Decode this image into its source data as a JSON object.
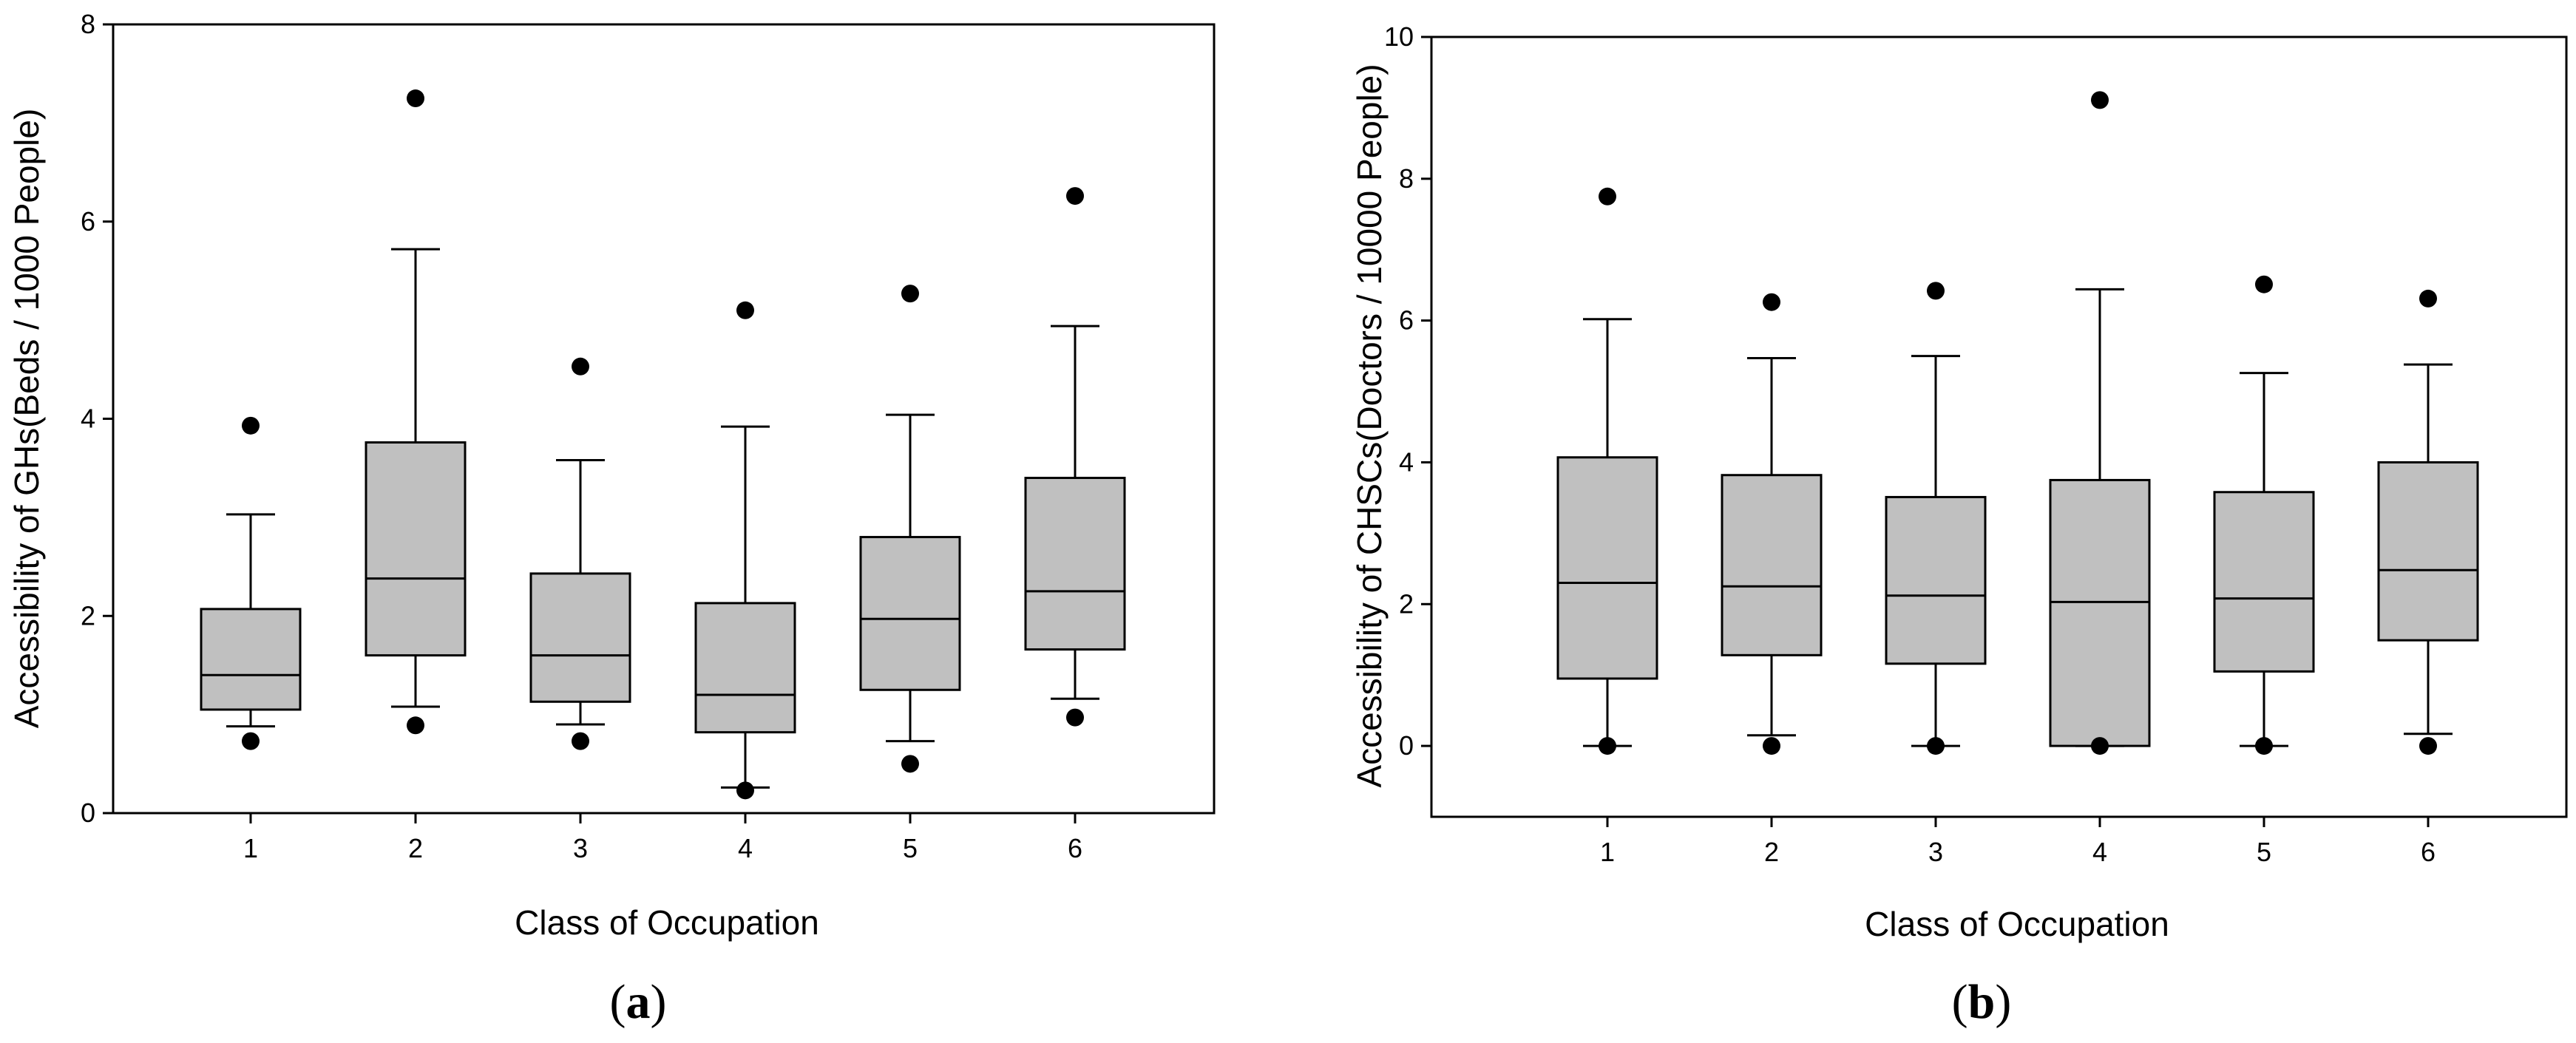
{
  "chart_data": [
    {
      "type": "boxplot",
      "panel_label": "a",
      "xlabel": "Class of Occupation",
      "ylabel": "Accessibility of GHs(Beds / 1000 People)",
      "ylim": [
        0,
        8
      ],
      "yticks": [
        0,
        2,
        4,
        6,
        8
      ],
      "grid": false,
      "categories": [
        "1",
        "2",
        "3",
        "4",
        "5",
        "6"
      ],
      "boxes": [
        {
          "category": "1",
          "whisker_low": 0.88,
          "q1": 1.05,
          "median": 1.4,
          "q3": 2.07,
          "whisker_high": 3.03,
          "outliers": [
            0.73,
            3.93
          ]
        },
        {
          "category": "2",
          "whisker_low": 1.08,
          "q1": 1.6,
          "median": 2.38,
          "q3": 3.76,
          "whisker_high": 5.72,
          "outliers": [
            0.89,
            7.25
          ]
        },
        {
          "category": "3",
          "whisker_low": 0.9,
          "q1": 1.13,
          "median": 1.6,
          "q3": 2.43,
          "whisker_high": 3.58,
          "outliers": [
            0.73,
            4.53
          ]
        },
        {
          "category": "4",
          "whisker_low": 0.26,
          "q1": 0.82,
          "median": 1.2,
          "q3": 2.13,
          "whisker_high": 3.92,
          "outliers": [
            0.23,
            5.1
          ]
        },
        {
          "category": "5",
          "whisker_low": 0.73,
          "q1": 1.25,
          "median": 1.97,
          "q3": 2.8,
          "whisker_high": 4.04,
          "outliers": [
            0.5,
            5.27
          ]
        },
        {
          "category": "6",
          "whisker_low": 1.16,
          "q1": 1.66,
          "median": 2.25,
          "q3": 3.4,
          "whisker_high": 4.94,
          "outliers": [
            0.97,
            6.26
          ]
        }
      ]
    },
    {
      "type": "boxplot",
      "panel_label": "b",
      "xlabel": "Class of Occupation",
      "ylabel": "Accessibility of CHSCs(Doctors / 10000 People)",
      "ylim": [
        -1,
        10
      ],
      "yticks": [
        0,
        2,
        4,
        6,
        8,
        10
      ],
      "grid": false,
      "categories": [
        "1",
        "2",
        "3",
        "4",
        "5",
        "6"
      ],
      "boxes": [
        {
          "category": "1",
          "whisker_low": 0.0,
          "q1": 0.95,
          "median": 2.3,
          "q3": 4.07,
          "whisker_high": 6.02,
          "outliers": [
            0.0,
            7.75
          ]
        },
        {
          "category": "2",
          "whisker_low": 0.15,
          "q1": 1.28,
          "median": 2.25,
          "q3": 3.82,
          "whisker_high": 5.47,
          "outliers": [
            0.0,
            6.26
          ]
        },
        {
          "category": "3",
          "whisker_low": 0.0,
          "q1": 1.16,
          "median": 2.12,
          "q3": 3.51,
          "whisker_high": 5.5,
          "outliers": [
            0.0,
            6.42
          ]
        },
        {
          "category": "4",
          "whisker_low": 0.0,
          "q1": 0.0,
          "median": 2.03,
          "q3": 3.75,
          "whisker_high": 6.44,
          "outliers": [
            0.0,
            9.11
          ]
        },
        {
          "category": "5",
          "whisker_low": 0.0,
          "q1": 1.05,
          "median": 2.08,
          "q3": 3.58,
          "whisker_high": 5.26,
          "outliers": [
            0.0,
            6.51
          ]
        },
        {
          "category": "6",
          "whisker_low": 0.17,
          "q1": 1.49,
          "median": 2.48,
          "q3": 4.0,
          "whisker_high": 5.38,
          "outliers": [
            0.0,
            6.31
          ]
        }
      ]
    }
  ]
}
